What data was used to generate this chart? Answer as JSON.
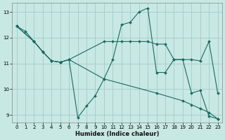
{
  "xlabel": "Humidex (Indice chaleur)",
  "bg_color": "#c8e8e4",
  "grid_color": "#a8d0cc",
  "line_color": "#1a6b5e",
  "xlim": [
    -0.5,
    23.5
  ],
  "ylim": [
    8.7,
    13.35
  ],
  "yticks": [
    9,
    10,
    11,
    12,
    13
  ],
  "xticks": [
    0,
    1,
    2,
    3,
    4,
    5,
    6,
    7,
    8,
    9,
    10,
    11,
    12,
    13,
    14,
    15,
    16,
    17,
    18,
    19,
    20,
    21,
    22,
    23
  ],
  "series": [
    {
      "x": [
        0,
        1,
        2,
        3,
        4,
        5,
        6,
        7,
        8,
        9,
        10,
        11,
        12,
        13,
        14,
        15,
        16,
        17,
        18,
        19,
        20,
        21,
        22,
        23
      ],
      "y": [
        12.45,
        12.25,
        11.85,
        11.45,
        11.1,
        11.05,
        11.15,
        8.9,
        9.35,
        9.75,
        10.4,
        11.15,
        12.5,
        12.6,
        13.0,
        13.15,
        10.65,
        10.65,
        11.15,
        11.15,
        9.85,
        9.95,
        8.95,
        8.85
      ]
    },
    {
      "x": [
        0,
        2,
        3,
        4,
        5,
        6,
        10,
        16,
        19,
        20,
        21,
        22,
        23
      ],
      "y": [
        12.45,
        11.85,
        11.45,
        11.1,
        11.05,
        11.15,
        10.4,
        9.85,
        9.55,
        9.4,
        9.25,
        9.1,
        8.85
      ]
    },
    {
      "x": [
        0,
        2,
        3,
        4,
        5,
        6,
        10,
        11,
        12,
        13,
        14,
        15,
        16,
        17,
        18,
        19,
        20,
        21,
        22,
        23
      ],
      "y": [
        12.45,
        11.85,
        11.45,
        11.1,
        11.05,
        11.15,
        11.85,
        11.85,
        11.85,
        11.85,
        11.85,
        11.85,
        11.75,
        11.75,
        11.15,
        11.15,
        11.15,
        11.1,
        11.85,
        9.85
      ]
    }
  ]
}
